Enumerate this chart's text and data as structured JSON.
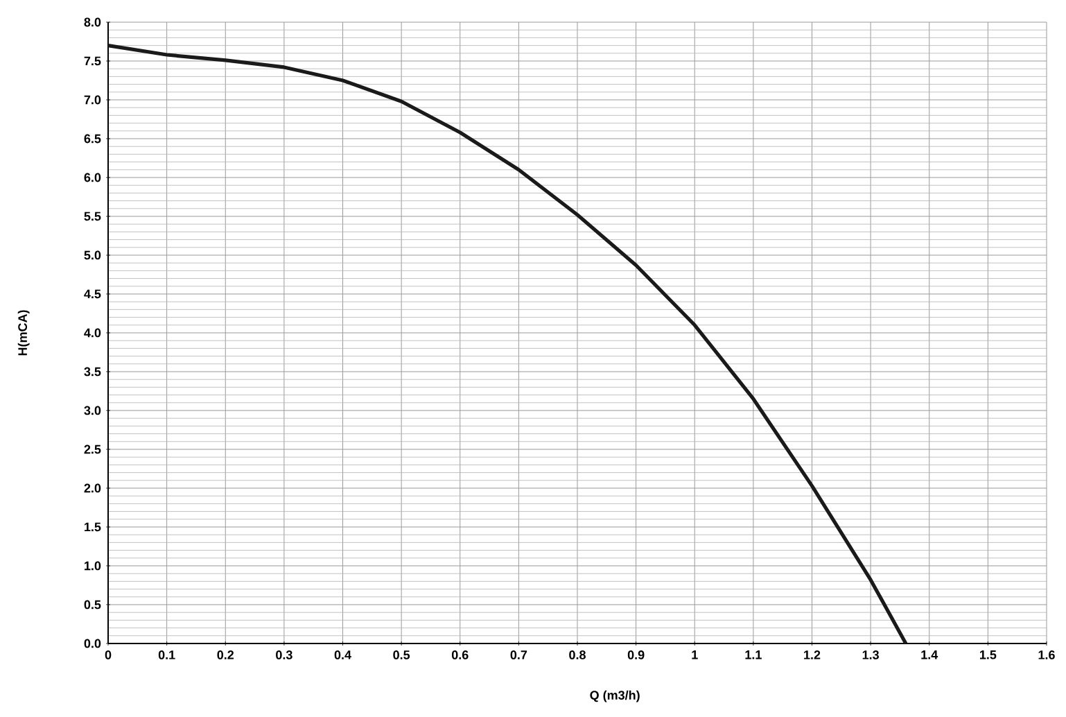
{
  "chart_data": {
    "type": "line",
    "xlabel": "Q (m3/h)",
    "ylabel": "H(mCA)",
    "x": [
      0,
      0.1,
      0.2,
      0.3,
      0.4,
      0.5,
      0.6,
      0.7,
      0.8,
      0.9,
      1.0,
      1.1,
      1.2,
      1.3,
      1.36
    ],
    "series": [
      {
        "color": "#1a1a1a",
        "values": [
          7.7,
          7.58,
          7.51,
          7.42,
          7.25,
          6.98,
          6.58,
          6.1,
          5.52,
          4.87,
          4.1,
          3.15,
          2.03,
          0.82,
          0
        ]
      }
    ],
    "xlim": [
      0,
      1.6
    ],
    "ylim": [
      0,
      8
    ],
    "xticks": [
      0,
      0.1,
      0.2,
      0.3,
      0.4,
      0.5,
      0.6,
      0.7,
      0.8,
      0.9,
      {
        "value": 1,
        "label": "1"
      },
      1.1,
      1.2,
      1.3,
      1.4,
      1.5,
      1.6
    ],
    "yticks": [
      {
        "value": 0,
        "label": "0.0"
      },
      0.5,
      {
        "value": 1,
        "label": "1.0"
      },
      1.5,
      {
        "value": 2,
        "label": "2.0"
      },
      2.5,
      {
        "value": 3,
        "label": "3.0"
      },
      3.5,
      {
        "value": 4,
        "label": "4.0"
      },
      4.5,
      {
        "value": 5,
        "label": "5.0"
      },
      5.5,
      {
        "value": 6,
        "label": "6.0"
      },
      6.5,
      {
        "value": 7,
        "label": "7.0"
      },
      7.5,
      {
        "value": 8,
        "label": "8.0"
      }
    ],
    "grid": true,
    "marker": "none",
    "line_style": "solid"
  }
}
